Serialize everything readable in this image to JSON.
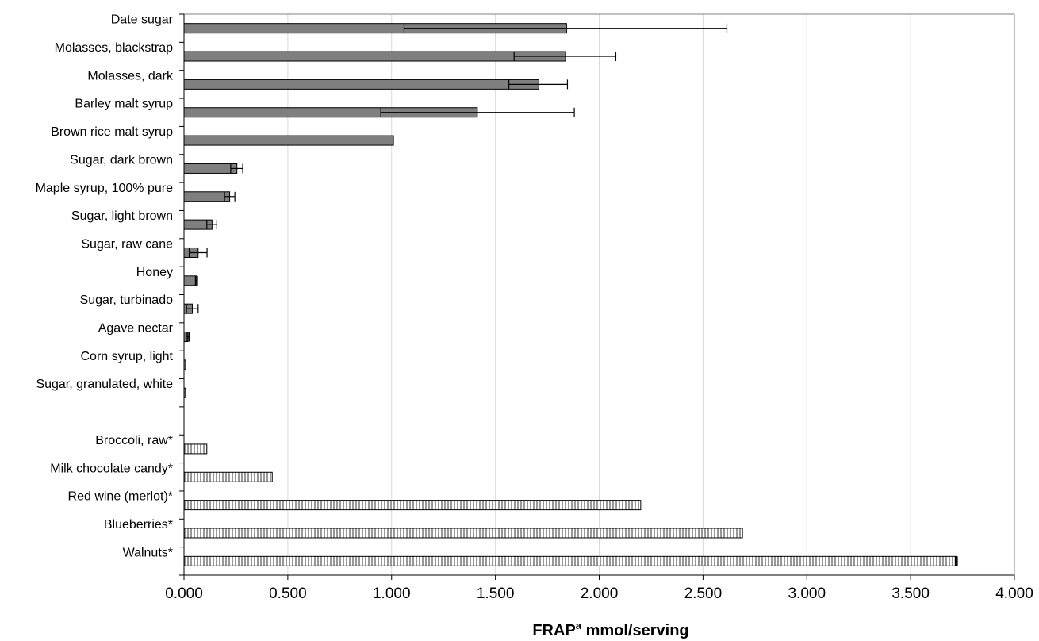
{
  "chart_data": {
    "type": "bar",
    "orientation": "horizontal",
    "xlabel_main": "FRAP",
    "xlabel_sup": "a",
    "xlabel_rest": " mmol/serving",
    "xlim": [
      0,
      4
    ],
    "xticks": [
      "0.000",
      "0.500",
      "1.000",
      "1.500",
      "2.000",
      "2.500",
      "3.000",
      "3.500",
      "4.000"
    ],
    "grid": "vertical",
    "legend": "none",
    "colors": {
      "sweetener": "#7f7f7f",
      "comparison_fill": "#ffffff",
      "comparison_hatch": "#555555",
      "gridline": "#d9d9d9",
      "border": "#000000"
    },
    "categories": [
      "Date sugar",
      "Molasses, blackstrap",
      "Molasses, dark",
      "Barley malt syrup",
      "Brown rice malt syrup",
      "Sugar, dark brown",
      "Maple syrup, 100% pure",
      "Sugar, light brown",
      "Sugar, raw cane",
      "Honey",
      "Sugar, turbinado",
      "Agave nectar",
      "Corn syrup, light",
      "Sugar, granulated, white",
      "",
      "Broccoli, raw*",
      "Milk chocolate candy*",
      "Red wine (merlot)*",
      "Blueberries*",
      "Walnuts*"
    ],
    "values": [
      1.843,
      1.838,
      1.709,
      1.413,
      1.009,
      0.255,
      0.22,
      0.135,
      0.068,
      0.06,
      0.04,
      0.02,
      0.008,
      0.006,
      null,
      0.11,
      0.425,
      2.2,
      2.69,
      3.72
    ],
    "error_low": [
      1.06,
      1.59,
      1.565,
      0.948,
      null,
      0.225,
      0.195,
      0.11,
      0.025,
      0.055,
      0.012,
      0.015,
      null,
      null,
      null,
      null,
      null,
      null,
      null,
      3.715
    ],
    "error_high": [
      2.615,
      2.08,
      1.847,
      1.88,
      null,
      0.283,
      0.245,
      0.158,
      0.111,
      0.065,
      0.068,
      0.025,
      null,
      null,
      null,
      null,
      null,
      null,
      null,
      3.725
    ],
    "group": [
      "sweetener",
      "sweetener",
      "sweetener",
      "sweetener",
      "sweetener",
      "sweetener",
      "sweetener",
      "sweetener",
      "sweetener",
      "sweetener",
      "sweetener",
      "sweetener",
      "sweetener",
      "sweetener",
      null,
      "comparison",
      "comparison",
      "comparison",
      "comparison",
      "comparison"
    ]
  }
}
